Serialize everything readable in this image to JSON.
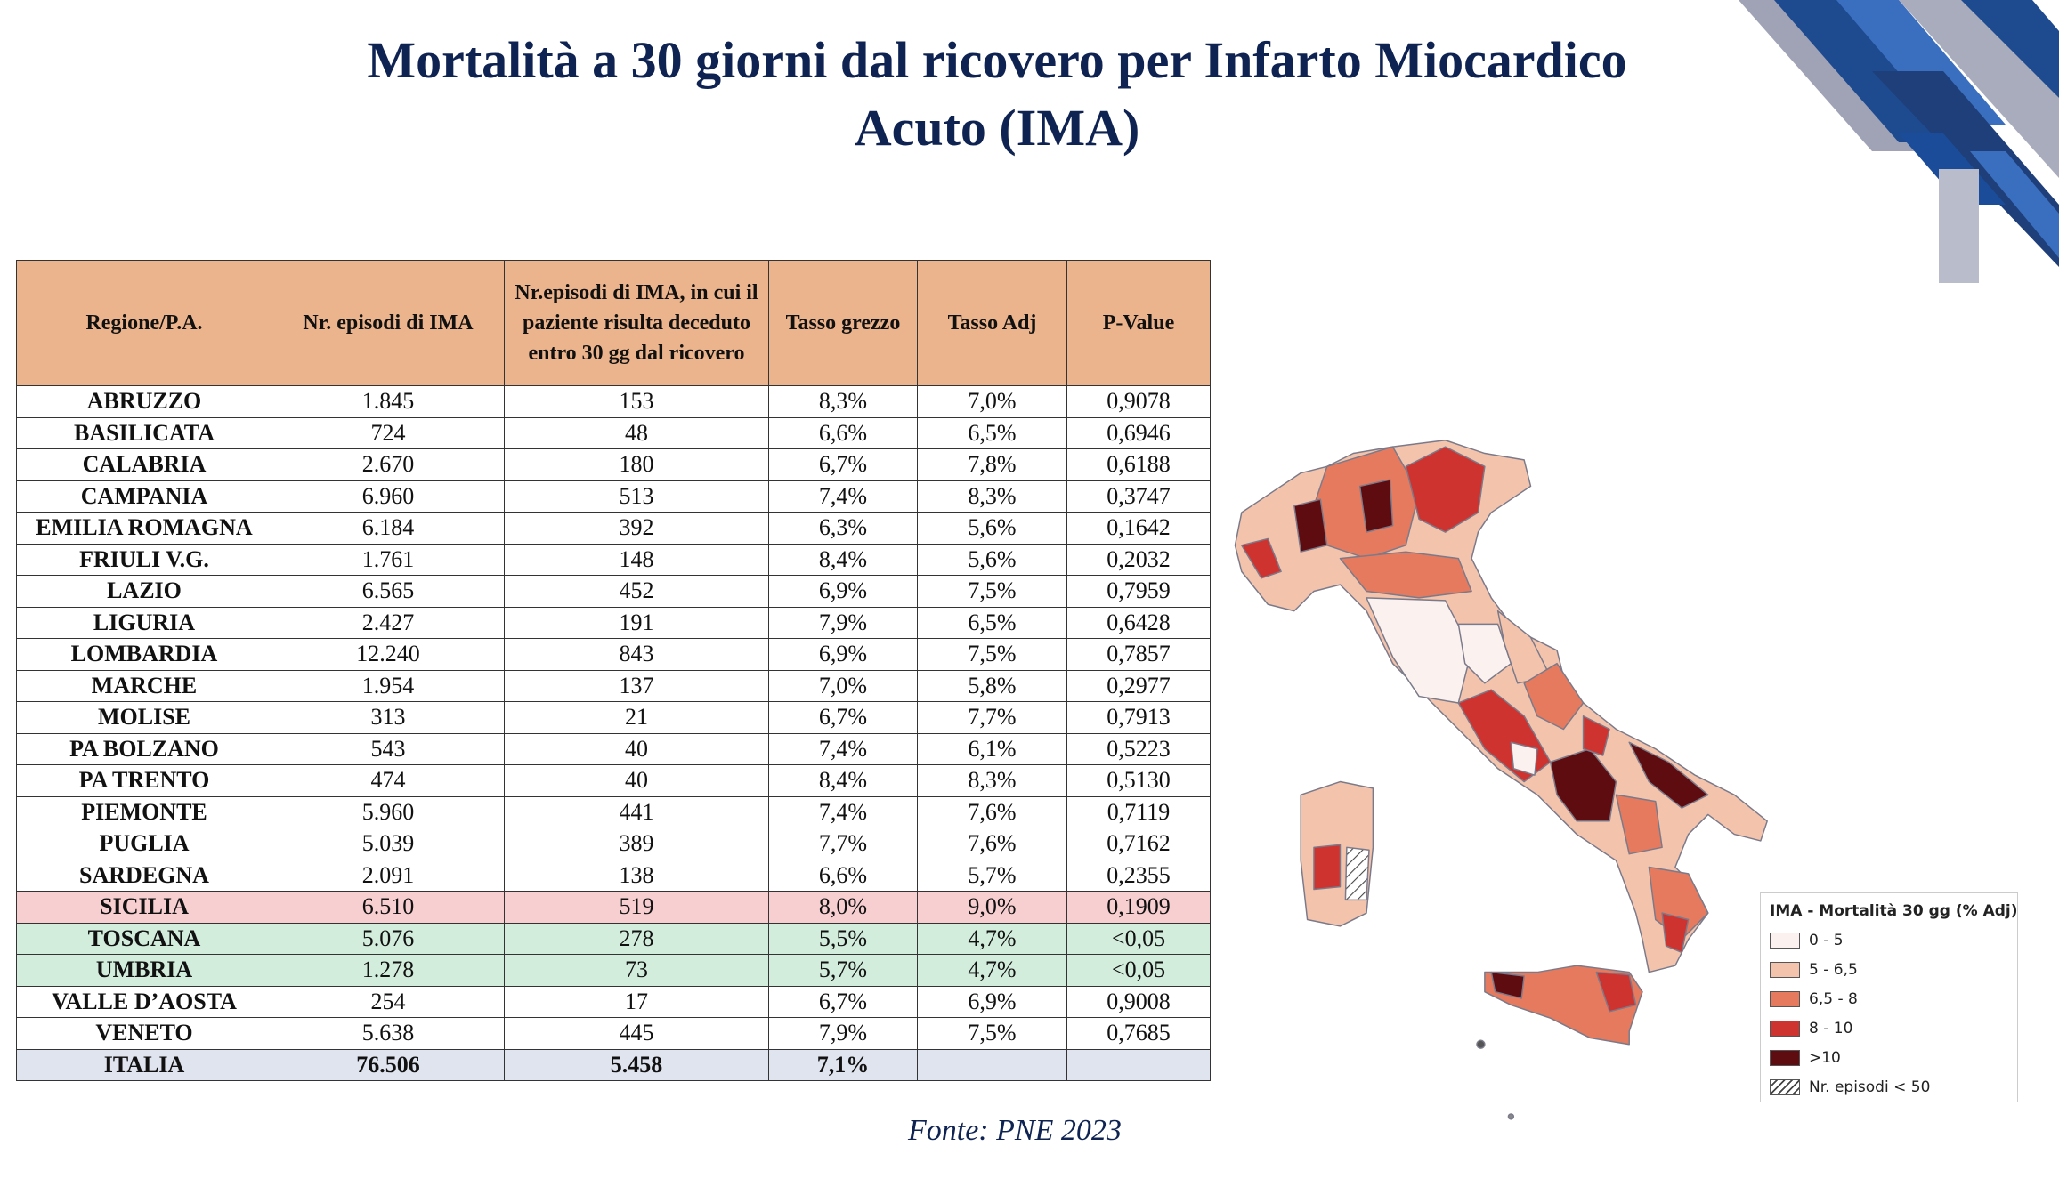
{
  "title": {
    "line1": "Mortalità a 30 giorni dal ricovero per Infarto Miocardico",
    "line2": "Acuto (IMA)"
  },
  "table": {
    "headers": [
      "Regione/P.A.",
      "Nr. episodi di IMA",
      "Nr.episodi di IMA, in cui il paziente risulta deceduto entro 30 gg dal ricovero",
      "Tasso grezzo",
      "Tasso Adj",
      "P-Value"
    ],
    "rows": [
      {
        "region": "ABRUZZO",
        "episodes": "1.845",
        "deaths": "153",
        "crude": "8,3%",
        "adj": "7,0%",
        "p": "0,9078",
        "highlight": ""
      },
      {
        "region": "BASILICATA",
        "episodes": "724",
        "deaths": "48",
        "crude": "6,6%",
        "adj": "6,5%",
        "p": "0,6946",
        "highlight": ""
      },
      {
        "region": "CALABRIA",
        "episodes": "2.670",
        "deaths": "180",
        "crude": "6,7%",
        "adj": "7,8%",
        "p": "0,6188",
        "highlight": ""
      },
      {
        "region": "CAMPANIA",
        "episodes": "6.960",
        "deaths": "513",
        "crude": "7,4%",
        "adj": "8,3%",
        "p": "0,3747",
        "highlight": ""
      },
      {
        "region": "EMILIA ROMAGNA",
        "episodes": "6.184",
        "deaths": "392",
        "crude": "6,3%",
        "adj": "5,6%",
        "p": "0,1642",
        "highlight": ""
      },
      {
        "region": "FRIULI V.G.",
        "episodes": "1.761",
        "deaths": "148",
        "crude": "8,4%",
        "adj": "5,6%",
        "p": "0,2032",
        "highlight": ""
      },
      {
        "region": "LAZIO",
        "episodes": "6.565",
        "deaths": "452",
        "crude": "6,9%",
        "adj": "7,5%",
        "p": "0,7959",
        "highlight": ""
      },
      {
        "region": "LIGURIA",
        "episodes": "2.427",
        "deaths": "191",
        "crude": "7,9%",
        "adj": "6,5%",
        "p": "0,6428",
        "highlight": ""
      },
      {
        "region": "LOMBARDIA",
        "episodes": "12.240",
        "deaths": "843",
        "crude": "6,9%",
        "adj": "7,5%",
        "p": "0,7857",
        "highlight": ""
      },
      {
        "region": "MARCHE",
        "episodes": "1.954",
        "deaths": "137",
        "crude": "7,0%",
        "adj": "5,8%",
        "p": "0,2977",
        "highlight": ""
      },
      {
        "region": "MOLISE",
        "episodes": "313",
        "deaths": "21",
        "crude": "6,7%",
        "adj": "7,7%",
        "p": "0,7913",
        "highlight": ""
      },
      {
        "region": "PA BOLZANO",
        "episodes": "543",
        "deaths": "40",
        "crude": "7,4%",
        "adj": "6,1%",
        "p": "0,5223",
        "highlight": ""
      },
      {
        "region": "PA TRENTO",
        "episodes": "474",
        "deaths": "40",
        "crude": "8,4%",
        "adj": "8,3%",
        "p": "0,5130",
        "highlight": ""
      },
      {
        "region": "PIEMONTE",
        "episodes": "5.960",
        "deaths": "441",
        "crude": "7,4%",
        "adj": "7,6%",
        "p": "0,7119",
        "highlight": ""
      },
      {
        "region": "PUGLIA",
        "episodes": "5.039",
        "deaths": "389",
        "crude": "7,7%",
        "adj": "7,6%",
        "p": "0,7162",
        "highlight": ""
      },
      {
        "region": "SARDEGNA",
        "episodes": "2.091",
        "deaths": "138",
        "crude": "6,6%",
        "adj": "5,7%",
        "p": "0,2355",
        "highlight": ""
      },
      {
        "region": "SICILIA",
        "episodes": "6.510",
        "deaths": "519",
        "crude": "8,0%",
        "adj": "9,0%",
        "p": "0,1909",
        "highlight": "red"
      },
      {
        "region": "TOSCANA",
        "episodes": "5.076",
        "deaths": "278",
        "crude": "5,5%",
        "adj": "4,7%",
        "p": "<0,05",
        "highlight": "green"
      },
      {
        "region": "UMBRIA",
        "episodes": "1.278",
        "deaths": "73",
        "crude": "5,7%",
        "adj": "4,7%",
        "p": "<0,05",
        "highlight": "green"
      },
      {
        "region": "VALLE D’AOSTA",
        "episodes": "254",
        "deaths": "17",
        "crude": "6,7%",
        "adj": "6,9%",
        "p": "0,9008",
        "highlight": ""
      },
      {
        "region": "VENETO",
        "episodes": "5.638",
        "deaths": "445",
        "crude": "7,9%",
        "adj": "7,5%",
        "p": "0,7685",
        "highlight": ""
      }
    ],
    "total": {
      "region": "ITALIA",
      "episodes": "76.506",
      "deaths": "5.458",
      "crude": "7,1%",
      "adj": "",
      "p": ""
    }
  },
  "source": "Fonte: PNE 2023",
  "legend": {
    "title": "IMA - Mortalità 30 gg (% Adj)",
    "items": [
      {
        "label": "0 - 5",
        "color": "#fbf1ee"
      },
      {
        "label": "5 - 6,5",
        "color": "#f3c3ac"
      },
      {
        "label": "6,5 - 8",
        "color": "#e67a5e"
      },
      {
        "label": "8 - 10",
        "color": "#cf3330"
      },
      {
        "label": ">10",
        "color": "#5e0c10"
      },
      {
        "label": "Nr. episodi < 50",
        "color": "hatch"
      }
    ]
  }
}
